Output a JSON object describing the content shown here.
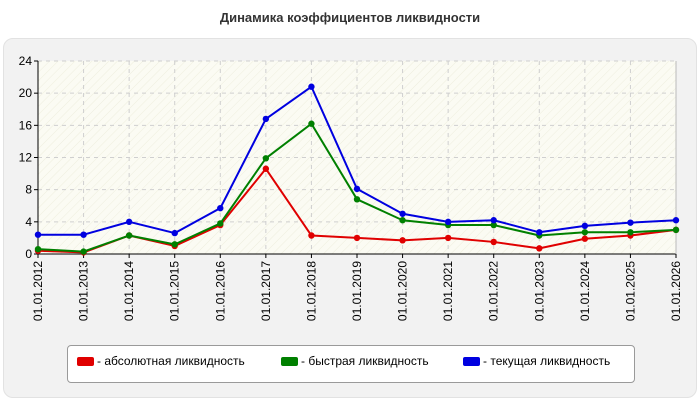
{
  "chart_data": {
    "type": "line",
    "title": "Динамика коэффициентов ликвидности",
    "xlabel": "",
    "ylabel": "",
    "ylim": [
      0,
      24
    ],
    "yticks": [
      0,
      4,
      8,
      12,
      16,
      20,
      24
    ],
    "grid": true,
    "legend_position": "bottom",
    "categories": [
      "01.01.2012",
      "01.01.2013",
      "01.01.2014",
      "01.01.2015",
      "01.01.2016",
      "01.01.2017",
      "01.01.2018",
      "01.01.2019",
      "01.01.2020",
      "01.01.2021",
      "01.01.2022",
      "01.01.2023",
      "01.01.2024",
      "01.01.2025",
      "01.01.2026"
    ],
    "series": [
      {
        "name": "- абсолютная ликвидность",
        "color": "#e00000",
        "values": [
          0.4,
          0.2,
          2.3,
          1.0,
          3.6,
          10.6,
          2.3,
          2.0,
          1.7,
          2.0,
          1.5,
          0.7,
          1.9,
          2.3,
          3.0
        ]
      },
      {
        "name": "- быстрая ликвидность",
        "color": "#008000",
        "values": [
          0.6,
          0.3,
          2.3,
          1.2,
          3.8,
          11.9,
          16.2,
          6.8,
          4.2,
          3.6,
          3.6,
          2.3,
          2.7,
          2.7,
          3.0
        ]
      },
      {
        "name": "- текущая ликвидность",
        "color": "#0000e0",
        "values": [
          2.4,
          2.4,
          4.0,
          2.6,
          5.7,
          16.8,
          20.8,
          8.1,
          5.0,
          4.0,
          4.2,
          2.7,
          3.5,
          3.9,
          4.2
        ]
      }
    ]
  }
}
